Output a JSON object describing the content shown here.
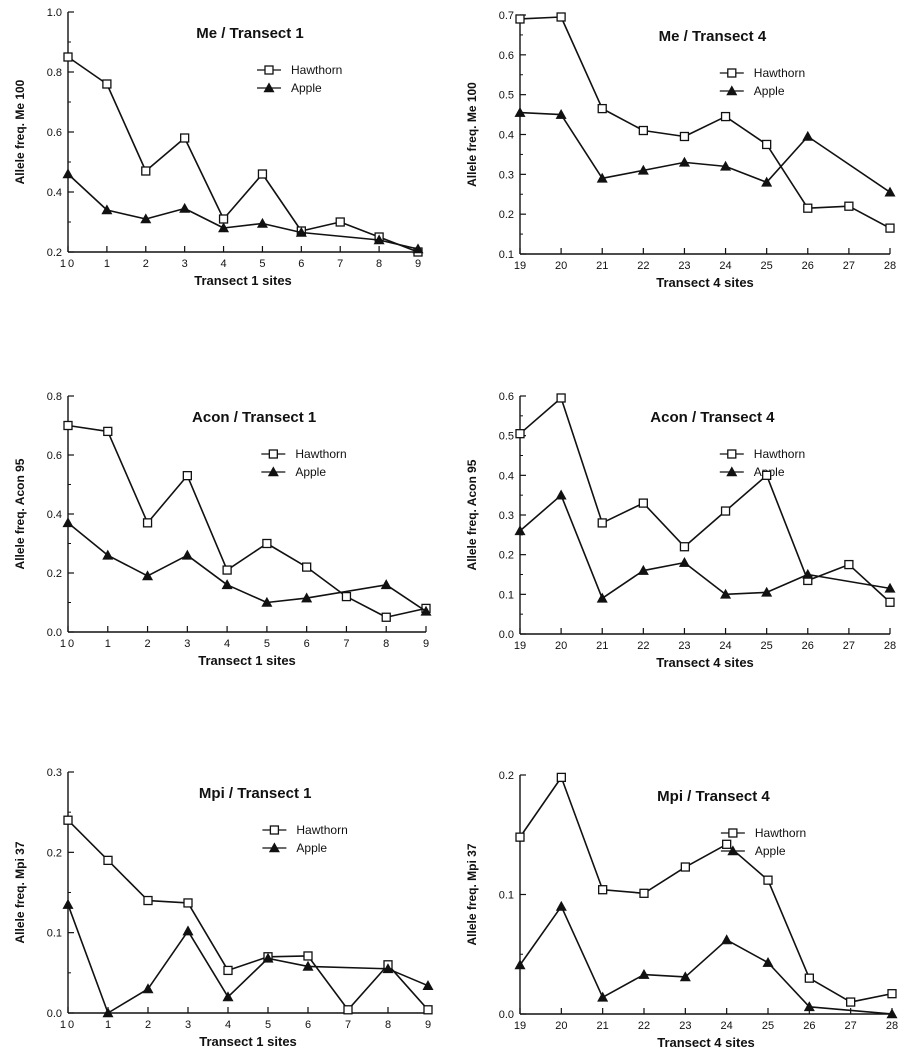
{
  "chart_data": [
    {
      "type": "line",
      "title": "Me / Transect 1",
      "xlabel": "Transect 1 sites",
      "ylabel": "Allele freq. Me 100",
      "x": [
        "10",
        "1",
        "2",
        "3",
        "4",
        "5",
        "6",
        "7",
        "8",
        "9"
      ],
      "ylim": [
        0.2,
        1.0
      ],
      "yticks": [
        "0.2",
        "0.4",
        "0.6",
        "0.8",
        "1.0"
      ],
      "legend": "top-right",
      "grid": false,
      "series": [
        {
          "name": "Hawthorn",
          "marker": "open-square",
          "values": [
            0.85,
            0.76,
            0.47,
            0.58,
            0.31,
            0.46,
            0.27,
            0.3,
            0.25,
            0.2
          ]
        },
        {
          "name": "Apple",
          "marker": "filled-triangle",
          "values": [
            0.46,
            0.34,
            0.31,
            0.345,
            0.28,
            0.295,
            0.265,
            null,
            0.24,
            0.21
          ]
        }
      ]
    },
    {
      "type": "line",
      "title": "Me / Transect 4",
      "xlabel": "Transect 4 sites",
      "ylabel": "Allele freq. Me 100",
      "x": [
        "19",
        "20",
        "21",
        "22",
        "23",
        "24",
        "25",
        "26",
        "27",
        "28"
      ],
      "ylim": [
        0.1,
        0.7
      ],
      "yticks": [
        "0.1",
        "0.2",
        "0.3",
        "0.4",
        "0.5",
        "0.6",
        "0.7"
      ],
      "legend": "top-right",
      "grid": false,
      "series": [
        {
          "name": "Hawthorn",
          "marker": "open-square",
          "values": [
            0.69,
            0.695,
            0.465,
            0.41,
            0.395,
            0.445,
            0.375,
            0.215,
            0.22,
            0.165
          ]
        },
        {
          "name": "Apple",
          "marker": "filled-triangle",
          "values": [
            0.455,
            0.45,
            0.29,
            0.31,
            0.33,
            0.32,
            0.28,
            0.395,
            null,
            0.255
          ]
        }
      ]
    },
    {
      "type": "line",
      "title": "Acon / Transect 1",
      "xlabel": "Transect 1 sites",
      "ylabel": "Allele freq. Acon 95",
      "x": [
        "10",
        "1",
        "2",
        "3",
        "4",
        "5",
        "6",
        "7",
        "8",
        "9"
      ],
      "ylim": [
        0.0,
        0.8
      ],
      "yticks": [
        "0.0",
        "0.2",
        "0.4",
        "0.6",
        "0.8"
      ],
      "legend": "top-right",
      "grid": false,
      "series": [
        {
          "name": "Hawthorn",
          "marker": "open-square",
          "values": [
            0.7,
            0.68,
            0.37,
            0.53,
            0.21,
            0.3,
            0.22,
            0.12,
            0.05,
            0.08
          ]
        },
        {
          "name": "Apple",
          "marker": "filled-triangle",
          "values": [
            0.37,
            0.26,
            0.19,
            0.26,
            0.16,
            0.1,
            0.115,
            null,
            0.16,
            0.07
          ]
        }
      ]
    },
    {
      "type": "line",
      "title": "Acon / Transect 4",
      "xlabel": "Transect 4 sites",
      "ylabel": "Allele freq. Acon 95",
      "x": [
        "19",
        "20",
        "21",
        "22",
        "23",
        "24",
        "25",
        "26",
        "27",
        "28"
      ],
      "ylim": [
        0.0,
        0.6
      ],
      "yticks": [
        "0.0",
        "0.1",
        "0.2",
        "0.3",
        "0.4",
        "0.5",
        "0.6"
      ],
      "legend": "top-right",
      "grid": false,
      "series": [
        {
          "name": "Hawthorn",
          "marker": "open-square",
          "values": [
            0.505,
            0.595,
            0.28,
            0.33,
            0.22,
            0.31,
            0.4,
            0.135,
            0.175,
            0.08
          ]
        },
        {
          "name": "Apple",
          "marker": "filled-triangle",
          "values": [
            0.26,
            0.35,
            0.09,
            0.16,
            0.18,
            0.1,
            0.105,
            0.15,
            null,
            0.115
          ]
        }
      ]
    },
    {
      "type": "line",
      "title": "Mpi / Transect 1",
      "xlabel": "Transect 1 sites",
      "ylabel": "Allele freq. Mpi 37",
      "x": [
        "10",
        "1",
        "2",
        "3",
        "4",
        "5",
        "6",
        "7",
        "8",
        "9"
      ],
      "ylim": [
        0.0,
        0.3
      ],
      "yticks": [
        "0.0",
        "0.1",
        "0.2",
        "0.3"
      ],
      "legend": "top-right",
      "grid": false,
      "series": [
        {
          "name": "Hawthorn",
          "marker": "open-square",
          "values": [
            0.24,
            0.19,
            0.14,
            0.137,
            0.053,
            0.07,
            0.071,
            0.004,
            0.06,
            0.004
          ]
        },
        {
          "name": "Apple",
          "marker": "filled-triangle",
          "values": [
            0.135,
            0.0,
            0.03,
            0.102,
            0.02,
            0.068,
            0.058,
            null,
            0.055,
            0.034
          ]
        }
      ]
    },
    {
      "type": "line",
      "title": "Mpi / Transect 4",
      "xlabel": "Transect 4 sites",
      "ylabel": "Allele freq. Mpi 37",
      "x": [
        "19",
        "20",
        "21",
        "22",
        "23",
        "24",
        "25",
        "26",
        "27",
        "28"
      ],
      "ylim": [
        0.0,
        0.2
      ],
      "yticks": [
        "0.0",
        "0.1",
        "0.2"
      ],
      "legend": "top-right",
      "grid": false,
      "series": [
        {
          "name": "Hawthorn",
          "marker": "open-square",
          "values": [
            0.148,
            0.198,
            0.104,
            0.101,
            0.123,
            0.142,
            0.112,
            0.03,
            0.01,
            0.017
          ]
        },
        {
          "name": "Apple",
          "marker": "filled-triangle",
          "values": [
            0.041,
            0.09,
            0.014,
            0.033,
            0.031,
            0.062,
            0.043,
            0.006,
            null,
            0.0
          ]
        }
      ]
    }
  ]
}
